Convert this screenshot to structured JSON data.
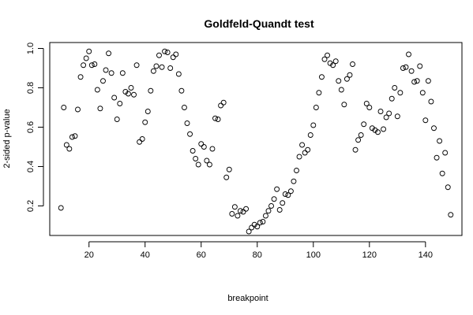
{
  "chart_data": {
    "type": "scatter",
    "title": "Goldfeld-Quandt test",
    "xlabel": "breakpoint",
    "ylabel": "2-sided p-value",
    "xlim": [
      6,
      153
    ],
    "ylim": [
      0.05,
      1.03
    ],
    "x_ticks": [
      20,
      40,
      60,
      80,
      100,
      120,
      140
    ],
    "x_tick_labels": [
      "20",
      "40",
      "60",
      "80",
      "100",
      "120",
      "140"
    ],
    "y_ticks": [
      0.2,
      0.4,
      0.6,
      0.8,
      1.0
    ],
    "y_tick_labels": [
      "0.2",
      "0.4",
      "0.6",
      "0.8",
      "1.0"
    ],
    "marker": "open-circle",
    "point_color": "#000000",
    "grid": false,
    "x": [
      10,
      11,
      12,
      13,
      14,
      15,
      16,
      17,
      18,
      19,
      20,
      21,
      22,
      23,
      24,
      25,
      26,
      27,
      28,
      29,
      30,
      31,
      32,
      33,
      34,
      35,
      36,
      37,
      38,
      39,
      40,
      41,
      42,
      43,
      44,
      45,
      46,
      47,
      48,
      49,
      50,
      51,
      52,
      53,
      54,
      55,
      56,
      57,
      58,
      59,
      60,
      61,
      62,
      63,
      64,
      65,
      66,
      67,
      68,
      69,
      70,
      71,
      72,
      73,
      74,
      75,
      76,
      77,
      78,
      79,
      80,
      81,
      82,
      83,
      84,
      85,
      86,
      87,
      88,
      89,
      90,
      91,
      92,
      93,
      94,
      95,
      96,
      97,
      98,
      99,
      100,
      101,
      102,
      103,
      104,
      105,
      106,
      107,
      108,
      109,
      110,
      111,
      112,
      113,
      114,
      115,
      116,
      117,
      118,
      119,
      120,
      121,
      122,
      123,
      124,
      125,
      126,
      127,
      128,
      129,
      130,
      131,
      132,
      133,
      134,
      135,
      136,
      137,
      138,
      139,
      140,
      141,
      142,
      143,
      144,
      145,
      146,
      147,
      148,
      149
    ],
    "y": [
      0.19,
      0.7,
      0.51,
      0.49,
      0.55,
      0.555,
      0.69,
      0.855,
      0.915,
      0.95,
      0.985,
      0.915,
      0.92,
      0.79,
      0.695,
      0.835,
      0.89,
      0.975,
      0.875,
      0.75,
      0.64,
      0.72,
      0.875,
      0.78,
      0.77,
      0.8,
      0.765,
      0.915,
      0.525,
      0.54,
      0.625,
      0.68,
      0.785,
      0.885,
      0.91,
      0.965,
      0.905,
      0.985,
      0.98,
      0.9,
      0.955,
      0.97,
      0.87,
      0.785,
      0.7,
      0.62,
      0.565,
      0.48,
      0.44,
      0.41,
      0.515,
      0.5,
      0.43,
      0.41,
      0.49,
      0.645,
      0.64,
      0.71,
      0.725,
      0.345,
      0.385,
      0.16,
      0.195,
      0.15,
      0.175,
      0.17,
      0.185,
      0.07,
      0.09,
      0.105,
      0.095,
      0.115,
      0.12,
      0.15,
      0.175,
      0.2,
      0.235,
      0.285,
      0.18,
      0.215,
      0.26,
      0.255,
      0.275,
      0.325,
      0.38,
      0.45,
      0.51,
      0.47,
      0.485,
      0.56,
      0.61,
      0.7,
      0.775,
      0.855,
      0.945,
      0.965,
      0.925,
      0.915,
      0.935,
      0.835,
      0.79,
      0.715,
      0.845,
      0.865,
      0.92,
      0.485,
      0.535,
      0.56,
      0.615,
      0.72,
      0.7,
      0.595,
      0.585,
      0.575,
      0.68,
      0.59,
      0.65,
      0.67,
      0.745,
      0.8,
      0.655,
      0.775,
      0.9,
      0.905,
      0.97,
      0.885,
      0.83,
      0.835,
      0.91,
      0.775,
      0.635,
      0.835,
      0.73,
      0.595,
      0.445,
      0.53,
      0.365,
      0.47,
      0.295,
      0.155
    ]
  }
}
